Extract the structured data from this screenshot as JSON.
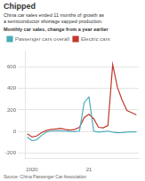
{
  "chart_data": {
    "type": "line",
    "title": "Chipped",
    "subtitle": "China car sales ended 11 months of growth as\na semiconductor shortage sapped production.",
    "annotations": [
      "Monthly car sales, change from a year earlier",
      "Source: China Passenger Car Association"
    ],
    "categories": [
      null,
      "2020",
      null,
      null,
      null,
      null,
      null,
      null,
      null,
      null,
      null,
      null,
      null,
      "21",
      null,
      null,
      null,
      null,
      null,
      null,
      null,
      null,
      null,
      null
    ],
    "series": [
      {
        "name": "Passenger cars overall",
        "color": "#4AADBA",
        "values": [
          -50,
          -85,
          -75,
          -35,
          -5,
          5,
          8,
          8,
          5,
          2,
          0,
          5,
          270,
          320,
          5,
          -5,
          0,
          5,
          -5,
          -10,
          -8,
          -5,
          -3,
          -2
        ]
      },
      {
        "name": "Electric cars",
        "color": "#C0392B",
        "values": [
          -20,
          -50,
          -40,
          -10,
          10,
          20,
          25,
          30,
          20,
          15,
          20,
          40,
          130,
          160,
          120,
          40,
          35,
          55,
          620,
          410,
          290,
          195,
          175,
          155
        ]
      }
    ],
    "ylim": [
      -250,
      750
    ],
    "yticks": [
      -200,
      0,
      200,
      400,
      600
    ],
    "grid": true,
    "legend": "top"
  }
}
